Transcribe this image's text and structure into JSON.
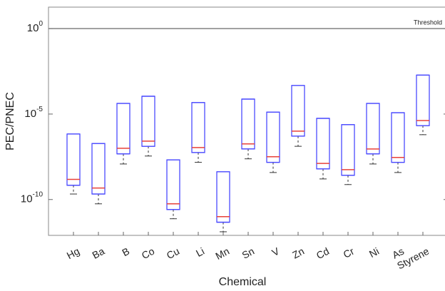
{
  "chart_data": {
    "type": "box",
    "x_label": "Chemical",
    "y_label": "PEC/PNEC",
    "categories": [
      "Hg",
      "Ba",
      "B",
      "Co",
      "Cu",
      "Li",
      "Mn",
      "Sn",
      "V",
      "Zn",
      "Cd",
      "Cr",
      "Ni",
      "As",
      "Styrene"
    ],
    "q3": [
      6.8e-07,
      1.9e-07,
      4.2e-05,
      0.00011,
      2.1e-08,
      4.7e-05,
      4.2e-09,
      7.5e-05,
      1.3e-05,
      0.00047,
      5.6e-06,
      2.4e-06,
      4.2e-05,
      1.2e-05,
      0.0019
    ],
    "median": [
      1.5e-09,
      4.7e-10,
      1e-07,
      2.6e-07,
      5.6e-11,
      1.1e-07,
      1e-11,
      1.8e-07,
      3.2e-08,
      1e-06,
      1.3e-08,
      5.6e-09,
      9.1e-08,
      2.9e-08,
      4.2e-06
    ],
    "q1": [
      6.8e-10,
      2.1e-10,
      4.7e-08,
      1.3e-07,
      2.6e-11,
      5.6e-08,
      4.7e-12,
      9.1e-08,
      1.5e-08,
      5.1e-07,
      6.2e-09,
      2.6e-09,
      4.7e-08,
      1.5e-08,
      2.1e-06
    ],
    "whisker_low": [
      2.1e-10,
      5.6e-11,
      1.2e-08,
      3.5e-08,
      7.5e-12,
      1.5e-08,
      1.3e-12,
      2.4e-08,
      3.8e-09,
      1.3e-07,
      1.6e-09,
      7.5e-10,
      1.2e-08,
      3.8e-09,
      6.2e-07
    ],
    "box_color": "#4a4aff",
    "median_color": "#e8413a",
    "whisker_color": "#333333",
    "log_scale": true,
    "ylim": [
      8e-13,
      18
    ],
    "yticks": [
      {
        "value": 1,
        "label": "10^0"
      },
      {
        "value": 1e-05,
        "label": "10^-5"
      },
      {
        "value": 1e-10,
        "label": "10^-10"
      }
    ],
    "threshold": {
      "value": 1,
      "label": "Threshold"
    }
  }
}
